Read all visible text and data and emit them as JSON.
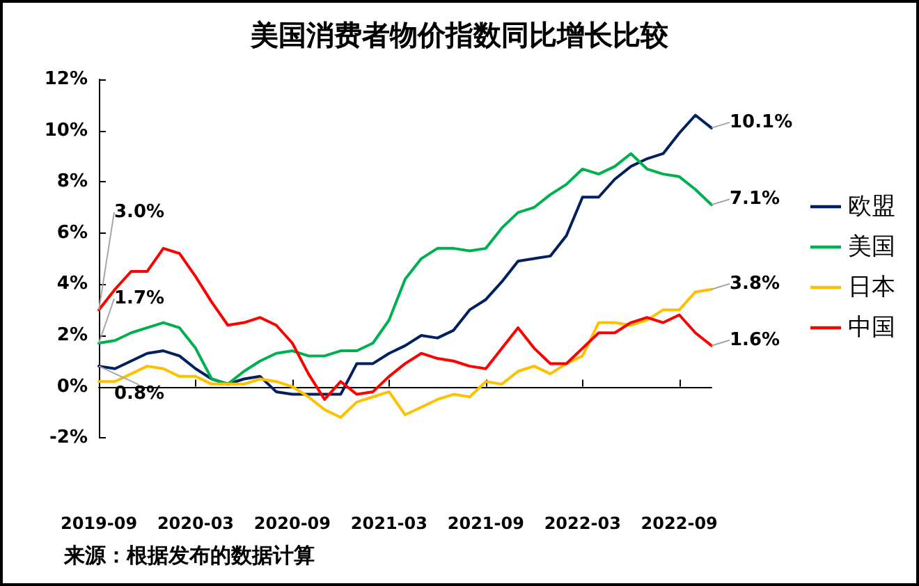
{
  "chart_data": {
    "type": "line",
    "title": "美国消费者物价指数同比增长比较",
    "categories": [
      "2019-09",
      null,
      null,
      null,
      null,
      null,
      "2020-03",
      null,
      null,
      null,
      null,
      null,
      "2020-09",
      null,
      null,
      null,
      null,
      null,
      "2021-03",
      null,
      null,
      null,
      null,
      null,
      "2021-09",
      null,
      null,
      null,
      null,
      null,
      "2022-03",
      null,
      null,
      null,
      null,
      null,
      "2022-09",
      null,
      null
    ],
    "series": [
      {
        "name": "欧盟",
        "color": "#002060",
        "values": [
          0.8,
          0.7,
          1.0,
          1.3,
          1.4,
          1.2,
          0.7,
          0.3,
          0.1,
          0.3,
          0.4,
          -0.2,
          -0.3,
          -0.3,
          -0.3,
          -0.3,
          0.9,
          0.9,
          1.3,
          1.6,
          2.0,
          1.9,
          2.2,
          3.0,
          3.4,
          4.1,
          4.9,
          5.0,
          5.1,
          5.9,
          7.4,
          7.4,
          8.1,
          8.6,
          8.9,
          9.1,
          9.9,
          10.6,
          10.1
        ],
        "value_labels": [
          "0.8%",
          null,
          null,
          null,
          null,
          null,
          null,
          null,
          null,
          null,
          null,
          null,
          null,
          null,
          null,
          null,
          null,
          null,
          null,
          null,
          null,
          null,
          null,
          null,
          null,
          null,
          null,
          null,
          null,
          null,
          null,
          null,
          null,
          null,
          null,
          null,
          null,
          null,
          "10.1%"
        ]
      },
      {
        "name": "美国",
        "color": "#00b050",
        "values": [
          1.7,
          1.8,
          2.1,
          2.3,
          2.5,
          2.3,
          1.5,
          0.3,
          0.1,
          0.6,
          1.0,
          1.3,
          1.4,
          1.2,
          1.2,
          1.4,
          1.4,
          1.7,
          2.6,
          4.2,
          5.0,
          5.4,
          5.4,
          5.3,
          5.4,
          6.2,
          6.8,
          7.0,
          7.5,
          7.9,
          8.5,
          8.3,
          8.6,
          9.1,
          8.5,
          8.3,
          8.2,
          7.7,
          7.1
        ],
        "value_labels": [
          "1.7%",
          null,
          null,
          null,
          null,
          null,
          null,
          null,
          null,
          null,
          null,
          null,
          null,
          null,
          null,
          null,
          null,
          null,
          null,
          null,
          null,
          null,
          null,
          null,
          null,
          null,
          null,
          null,
          null,
          null,
          null,
          null,
          null,
          null,
          null,
          null,
          null,
          null,
          "7.1%"
        ]
      },
      {
        "name": "日本",
        "color": "#ffc000",
        "values": [
          0.2,
          0.2,
          0.5,
          0.8,
          0.7,
          0.4,
          0.4,
          0.1,
          0.1,
          0.1,
          0.3,
          0.2,
          0.0,
          -0.4,
          -0.9,
          -1.2,
          -0.6,
          -0.4,
          -0.2,
          -1.1,
          -0.8,
          -0.5,
          -0.3,
          -0.4,
          0.2,
          0.1,
          0.6,
          0.8,
          0.5,
          0.9,
          1.2,
          2.5,
          2.5,
          2.4,
          2.6,
          3.0,
          3.0,
          3.7,
          3.8
        ],
        "value_labels": [
          null,
          null,
          null,
          null,
          null,
          null,
          null,
          null,
          null,
          null,
          null,
          null,
          null,
          null,
          null,
          null,
          null,
          null,
          null,
          null,
          null,
          null,
          null,
          null,
          null,
          null,
          null,
          null,
          null,
          null,
          null,
          null,
          null,
          null,
          null,
          null,
          null,
          null,
          "3.8%"
        ]
      },
      {
        "name": "中国",
        "color": "#ff0000",
        "values": [
          3.0,
          3.8,
          4.5,
          4.5,
          5.4,
          5.2,
          4.3,
          3.3,
          2.4,
          2.5,
          2.7,
          2.4,
          1.7,
          0.5,
          -0.5,
          0.2,
          -0.3,
          -0.2,
          0.4,
          0.9,
          1.3,
          1.1,
          1.0,
          0.8,
          0.7,
          1.5,
          2.3,
          1.5,
          0.9,
          0.9,
          1.5,
          2.1,
          2.1,
          2.5,
          2.7,
          2.5,
          2.8,
          2.1,
          1.6
        ],
        "value_labels": [
          "3.0%",
          null,
          null,
          null,
          null,
          null,
          null,
          null,
          null,
          null,
          null,
          null,
          null,
          null,
          null,
          null,
          null,
          null,
          null,
          null,
          null,
          null,
          null,
          null,
          null,
          null,
          null,
          null,
          null,
          null,
          null,
          null,
          null,
          null,
          null,
          null,
          null,
          null,
          "1.6%"
        ]
      }
    ],
    "ylim": [
      -2,
      12
    ],
    "yticks": [
      {
        "value": -2,
        "label": "-2%"
      },
      {
        "value": 0,
        "label": "0%"
      },
      {
        "value": 2,
        "label": "2%"
      },
      {
        "value": 4,
        "label": "4%"
      },
      {
        "value": 6,
        "label": "6%"
      },
      {
        "value": 8,
        "label": "8%"
      },
      {
        "value": 10,
        "label": "10%"
      },
      {
        "value": 12,
        "label": "12%"
      }
    ],
    "legend": "right",
    "marker": "none",
    "line_style": "solid",
    "annotations": [
      "来源：根据发布的数据计算"
    ]
  }
}
